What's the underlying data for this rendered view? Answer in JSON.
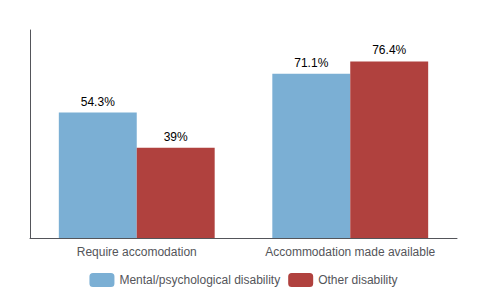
{
  "chart_data": {
    "type": "bar",
    "categories": [
      "Require accomodation",
      "Accommodation made available"
    ],
    "series": [
      {
        "name": "Mental/psychological disability",
        "color": "#7BAFD4",
        "values": [
          54.3,
          71.1
        ],
        "value_labels": [
          "54.3%",
          "71.1%"
        ]
      },
      {
        "name": "Other disability",
        "color": "#B0413E",
        "values": [
          39.0,
          76.4
        ],
        "value_labels": [
          "39%",
          "76.4%"
        ]
      }
    ],
    "ylim": [
      0,
      90
    ],
    "grid": false,
    "legend": "bottom",
    "data_labels": true,
    "tick_labels": "x"
  }
}
